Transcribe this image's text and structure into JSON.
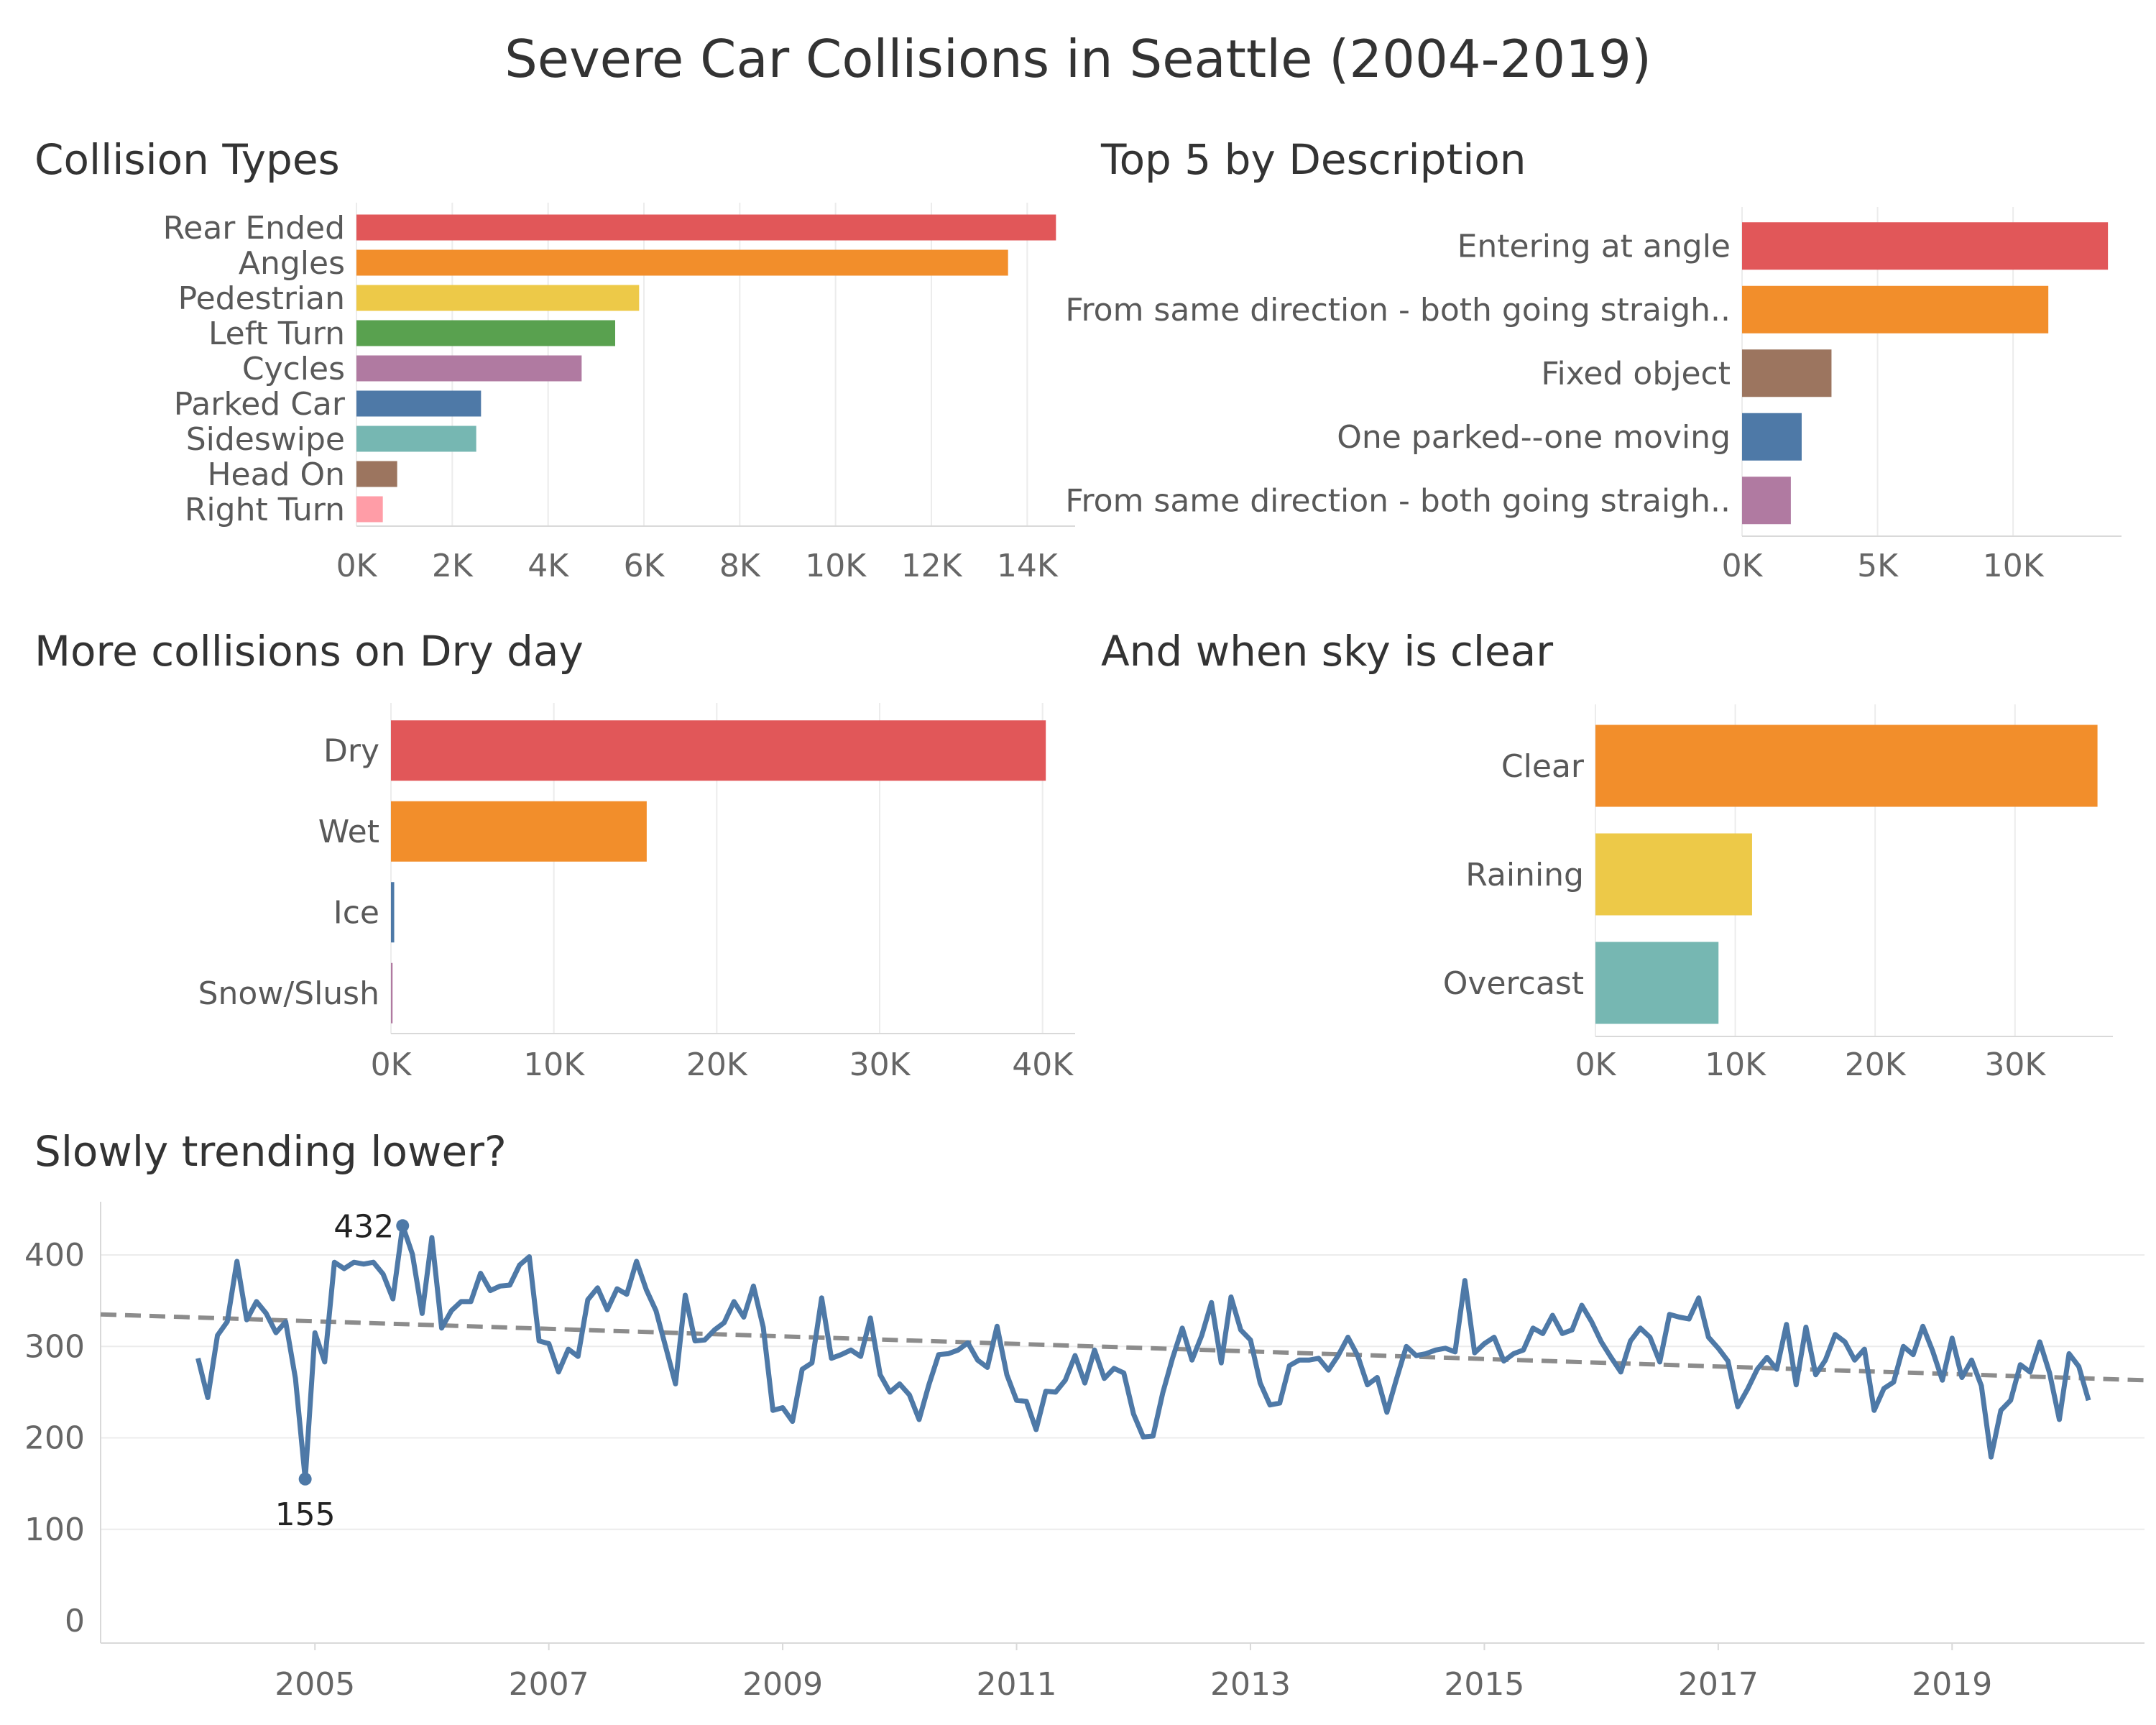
{
  "title": "Severe Car Collisions in Seattle (2004-2019)",
  "chart_data": [
    {
      "type": "bar",
      "title": "Collision Types",
      "categories": [
        "Rear Ended",
        "Angles",
        "Pedestrian",
        "Left Turn",
        "Cycles",
        "Parked Car",
        "Sideswipe",
        "Head On",
        "Right Turn"
      ],
      "values": [
        14600,
        13600,
        5900,
        5400,
        4700,
        2600,
        2500,
        850,
        550
      ],
      "colors": [
        "#e15759",
        "#f28e2b",
        "#edc948",
        "#59a14f",
        "#b07aa1",
        "#4e79a7",
        "#76b7b2",
        "#9c755f",
        "#ff9da7"
      ],
      "ticks": [
        "0K",
        "2K",
        "4K",
        "6K",
        "8K",
        "10K",
        "12K",
        "14K"
      ],
      "xlim": [
        0,
        15000
      ],
      "grid": true
    },
    {
      "type": "bar",
      "title": "Top 5 by Description",
      "categories": [
        "Entering at angle",
        "From same direction - both going straigh..",
        "Fixed object",
        "One parked--one moving",
        "From same direction - both going straigh.."
      ],
      "values": [
        13500,
        11300,
        3300,
        2200,
        1800
      ],
      "colors": [
        "#e15759",
        "#f28e2b",
        "#9c755f",
        "#4e79a7",
        "#b07aa1"
      ],
      "ticks": [
        "0K",
        "5K",
        "10K"
      ],
      "xlim": [
        0,
        14000
      ],
      "grid": true
    },
    {
      "type": "bar",
      "title": "More collisions on Dry day",
      "categories": [
        "Dry",
        "Wet",
        "Ice",
        "Snow/Slush"
      ],
      "values": [
        40200,
        15700,
        200,
        100
      ],
      "colors": [
        "#e15759",
        "#f28e2b",
        "#4e79a7",
        "#b07aa1"
      ],
      "ticks": [
        "0K",
        "10K",
        "20K",
        "30K",
        "40K"
      ],
      "xlim": [
        0,
        42000
      ],
      "grid": true
    },
    {
      "type": "bar",
      "title": "And when sky is clear",
      "categories": [
        "Clear",
        "Raining",
        "Overcast"
      ],
      "values": [
        35900,
        11200,
        8800
      ],
      "colors": [
        "#f28e2b",
        "#edc948",
        "#76b7b2"
      ],
      "ticks": [
        "0K",
        "10K",
        "20K",
        "30K"
      ],
      "xlim": [
        0,
        37000
      ],
      "grid": true
    },
    {
      "type": "line",
      "title": "Slowly trending lower?",
      "x_start": "2004-01",
      "x_step": "month",
      "values": [
        287,
        244,
        312,
        327,
        393,
        329,
        349,
        336,
        315,
        327,
        265,
        155,
        315,
        283,
        392,
        385,
        392,
        390,
        392,
        379,
        352,
        432,
        401,
        336,
        419,
        320,
        339,
        349,
        349,
        380,
        361,
        366,
        367,
        389,
        398,
        306,
        303,
        272,
        297,
        289,
        351,
        364,
        340,
        363,
        357,
        393,
        362,
        339,
        299,
        259,
        356,
        306,
        307,
        318,
        326,
        349,
        332,
        366,
        321,
        230,
        233,
        218,
        275,
        282,
        353,
        287,
        291,
        296,
        289,
        331,
        269,
        250,
        259,
        247,
        220,
        258,
        291,
        292,
        296,
        304,
        285,
        277,
        322,
        269,
        241,
        240,
        209,
        251,
        250,
        263,
        290,
        260,
        296,
        265,
        276,
        271,
        226,
        201,
        202,
        249,
        287,
        320,
        285,
        312,
        348,
        282,
        354,
        318,
        307,
        260,
        236,
        238,
        279,
        285,
        285,
        287,
        274,
        290,
        310,
        290,
        258,
        266,
        228,
        265,
        300,
        290,
        292,
        296,
        298,
        294,
        372,
        293,
        303,
        310,
        284,
        292,
        296,
        320,
        314,
        334,
        314,
        318,
        345,
        327,
        305,
        288,
        272,
        306,
        320,
        310,
        283,
        335,
        332,
        330,
        353,
        310,
        298,
        284,
        234,
        253,
        275,
        288,
        275,
        324,
        258,
        321,
        269,
        285,
        313,
        305,
        285,
        297,
        230,
        254,
        261,
        300,
        291,
        322,
        295,
        263,
        309,
        266,
        285,
        257,
        179,
        230,
        241,
        280,
        272,
        305,
        271,
        220,
        292,
        278,
        241
      ],
      "annotations": [
        {
          "label": "432",
          "value": 432,
          "date": "2005-10"
        },
        {
          "label": "155",
          "value": 155,
          "date": "2004-12"
        }
      ],
      "trend": {
        "start_value": 335,
        "end_value": 263
      },
      "x_ticks": [
        "2005",
        "2007",
        "2009",
        "2011",
        "2013",
        "2015",
        "2017",
        "2019"
      ],
      "y_ticks": [
        "0",
        "100",
        "200",
        "300",
        "400"
      ],
      "ylim": [
        0,
        450
      ],
      "color": "#4e79a7",
      "trend_color": "#8c8c8c",
      "grid": true
    }
  ]
}
